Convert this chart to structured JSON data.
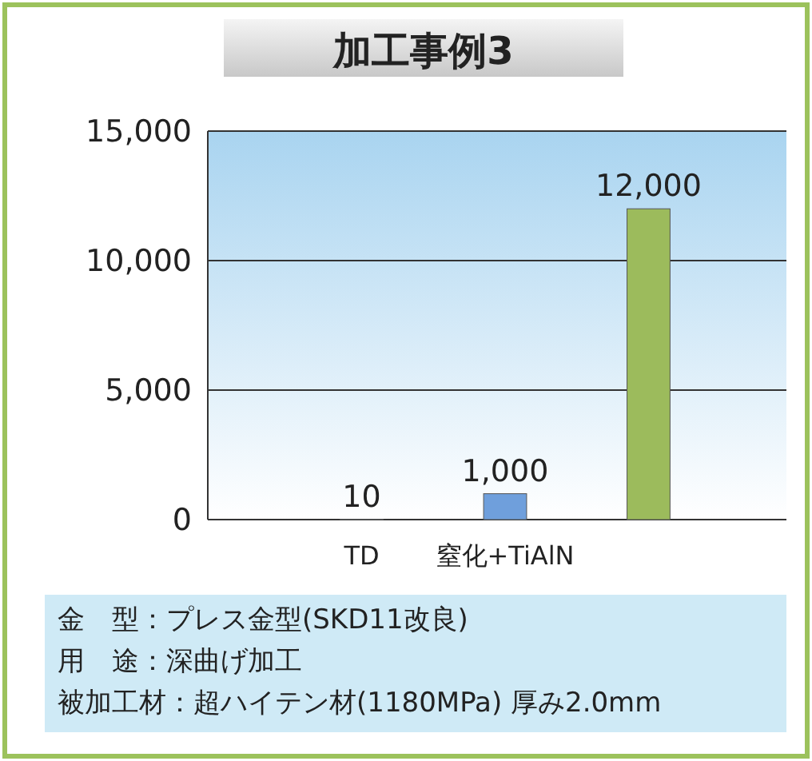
{
  "chart_data": {
    "type": "bar",
    "title": "加工事例3",
    "categories": [
      "TD",
      "窒化+TiAlN",
      null
    ],
    "values": [
      10,
      1000,
      12000
    ],
    "colors": [
      "#8fa8c8",
      "#6f9fdc",
      "#9cbb5c"
    ],
    "value_labels": [
      "10",
      "1,000",
      "12,000"
    ],
    "ylim": [
      0,
      15000
    ],
    "yticks": [
      0,
      {
        "value": 5000,
        "label": "5,000"
      },
      {
        "value": 10000,
        "label": "10,000"
      },
      {
        "value": 15000,
        "label": "15,000"
      }
    ],
    "grid": "y",
    "annotations": [
      "金　型：プレス金型(SKD11改良)",
      "用　途：深曲げ加工",
      "被加工材：超ハイテン材(1180MPa) 厚み2.0mm"
    ]
  }
}
